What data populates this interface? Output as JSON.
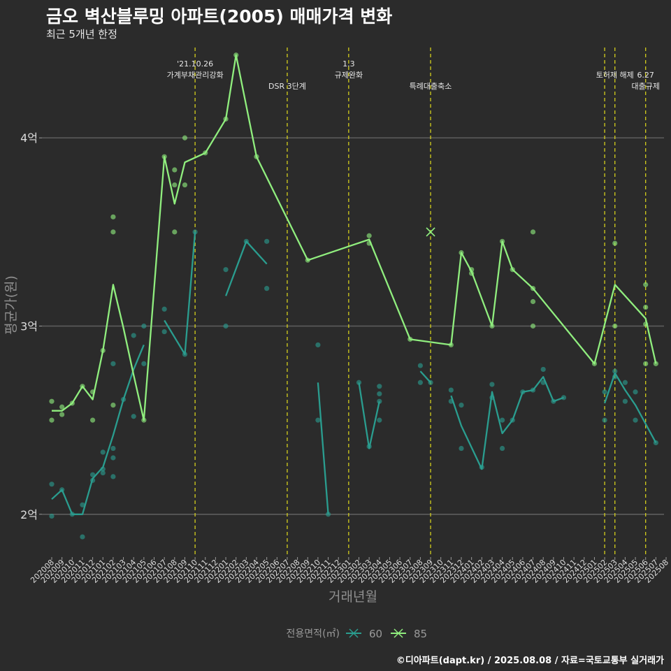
{
  "title": "금오 벽산블루밍 아파트(2005) 매매가격 변화",
  "subtitle": "최근 5개년 한정",
  "caption": "©디아파트(dapt.kr) / 2025.08.08 / 자료=국토교통부 실거래가",
  "chart_data": {
    "type": "line",
    "xlabel": "거래년월",
    "ylabel": "평균가(원)",
    "ylim": [
      1.78,
      4.48
    ],
    "yticks": [
      {
        "value": 2,
        "label": "2억"
      },
      {
        "value": 3,
        "label": "3억"
      },
      {
        "value": 4,
        "label": "4억"
      }
    ],
    "categories": [
      "202008",
      "202009",
      "202010",
      "202011",
      "202012",
      "202101",
      "202102",
      "202103",
      "202104",
      "202105",
      "202106",
      "202107",
      "202108",
      "202109",
      "202110",
      "202111",
      "202112",
      "202201",
      "202202",
      "202203",
      "202204",
      "202205",
      "202206",
      "202207",
      "202208",
      "202209",
      "202210",
      "202211",
      "202212",
      "202301",
      "202302",
      "202303",
      "202304",
      "202305",
      "202306",
      "202307",
      "202308",
      "202309",
      "202310",
      "202311",
      "202312",
      "202401",
      "202402",
      "202403",
      "202404",
      "202405",
      "202406",
      "202407",
      "202408",
      "202409",
      "202410",
      "202411",
      "202412",
      "202501",
      "202502",
      "202503",
      "202504",
      "202505",
      "202506",
      "202507",
      "202508"
    ],
    "legend": {
      "title": "전용면적(㎡)",
      "position": "bottom"
    },
    "series": [
      {
        "name": "60",
        "color": "#2a9d8f",
        "lines": [
          [
            [
              "202008",
              2.08
            ],
            [
              "202009",
              2.13
            ],
            [
              "202010",
              2.0
            ],
            [
              "202011",
              2.0
            ],
            [
              "202012",
              2.19
            ],
            [
              "202101",
              2.25
            ],
            [
              "202102",
              2.42
            ],
            [
              "202103",
              2.61
            ],
            [
              "202104",
              2.77
            ],
            [
              "202105",
              2.9
            ]
          ],
          [
            [
              "202107",
              3.03
            ],
            [
              "202109",
              2.85
            ],
            [
              "202110",
              3.5
            ]
          ],
          [
            [
              "202201",
              3.16
            ],
            [
              "202203",
              3.45
            ],
            [
              "202205",
              3.33
            ]
          ],
          [
            [
              "202210",
              2.7
            ],
            [
              "202211",
              2.0
            ]
          ],
          [
            [
              "202302",
              2.7
            ],
            [
              "202303",
              2.35
            ],
            [
              "202304",
              2.6
            ]
          ],
          [
            [
              "202308",
              2.76
            ],
            [
              "202309",
              2.7
            ]
          ],
          [
            [
              "202311",
              2.63
            ],
            [
              "202312",
              2.47
            ],
            [
              "202402",
              2.24
            ],
            [
              "202403",
              2.65
            ],
            [
              "202404",
              2.43
            ],
            [
              "202405",
              2.5
            ],
            [
              "202406",
              2.65
            ],
            [
              "202407",
              2.66
            ],
            [
              "202408",
              2.73
            ],
            [
              "202409",
              2.6
            ],
            [
              "202410",
              2.62
            ]
          ],
          [
            [
              "202502",
              2.59
            ],
            [
              "202503",
              2.75
            ],
            [
              "202504",
              2.66
            ],
            [
              "202505",
              2.58
            ],
            [
              "202507",
              2.38
            ]
          ]
        ],
        "points": [
          [
            "202008",
            2.16
          ],
          [
            "202008",
            1.99
          ],
          [
            "202009",
            2.13
          ],
          [
            "202010",
            2.0
          ],
          [
            "202011",
            2.05
          ],
          [
            "202011",
            1.88
          ],
          [
            "202012",
            2.21
          ],
          [
            "202012",
            2.18
          ],
          [
            "202101",
            2.33
          ],
          [
            "202101",
            2.24
          ],
          [
            "202101",
            2.22
          ],
          [
            "202102",
            2.8
          ],
          [
            "202102",
            2.35
          ],
          [
            "202102",
            2.3
          ],
          [
            "202102",
            2.2
          ],
          [
            "202103",
            2.61
          ],
          [
            "202104",
            2.95
          ],
          [
            "202104",
            2.52
          ],
          [
            "202105",
            3.0
          ],
          [
            "202105",
            2.8
          ],
          [
            "202107",
            3.09
          ],
          [
            "202107",
            2.97
          ],
          [
            "202109",
            2.85
          ],
          [
            "202110",
            3.5
          ],
          [
            "202201",
            3.3
          ],
          [
            "202201",
            3.0
          ],
          [
            "202203",
            3.45
          ],
          [
            "202205",
            3.45
          ],
          [
            "202205",
            3.2
          ],
          [
            "202210",
            2.9
          ],
          [
            "202210",
            2.5
          ],
          [
            "202211",
            2.0
          ],
          [
            "202302",
            2.7
          ],
          [
            "202303",
            2.36
          ],
          [
            "202304",
            2.68
          ],
          [
            "202304",
            2.64
          ],
          [
            "202304",
            2.6
          ],
          [
            "202304",
            2.5
          ],
          [
            "202308",
            2.79
          ],
          [
            "202308",
            2.7
          ],
          [
            "202309",
            2.7
          ],
          [
            "202311",
            2.66
          ],
          [
            "202311",
            2.6
          ],
          [
            "202312",
            2.58
          ],
          [
            "202312",
            2.35
          ],
          [
            "202402",
            2.25
          ],
          [
            "202403",
            2.69
          ],
          [
            "202403",
            2.62
          ],
          [
            "202404",
            2.5
          ],
          [
            "202404",
            2.35
          ],
          [
            "202405",
            2.5
          ],
          [
            "202406",
            2.65
          ],
          [
            "202407",
            2.66
          ],
          [
            "202408",
            2.77
          ],
          [
            "202408",
            2.7
          ],
          [
            "202409",
            2.6
          ],
          [
            "202410",
            2.62
          ],
          [
            "202502",
            2.65
          ],
          [
            "202502",
            2.5
          ],
          [
            "202503",
            2.76
          ],
          [
            "202503",
            2.73
          ],
          [
            "202504",
            2.7
          ],
          [
            "202504",
            2.6
          ],
          [
            "202505",
            2.65
          ],
          [
            "202505",
            2.5
          ],
          [
            "202507",
            2.38
          ]
        ]
      },
      {
        "name": "85",
        "color": "#90ee7e",
        "lines": [
          [
            [
              "202008",
              2.55
            ],
            [
              "202009",
              2.55
            ],
            [
              "202010",
              2.59
            ],
            [
              "202011",
              2.68
            ],
            [
              "202012",
              2.61
            ],
            [
              "202101",
              2.87
            ],
            [
              "202102",
              3.22
            ],
            [
              "202103",
              2.99
            ],
            [
              "202104",
              2.74
            ],
            [
              "202105",
              2.5
            ],
            [
              "202107",
              3.9
            ],
            [
              "202108",
              3.65
            ],
            [
              "202109",
              3.87
            ],
            [
              "202111",
              3.92
            ],
            [
              "202201",
              4.1
            ],
            [
              "202202",
              4.44
            ],
            [
              "202204",
              3.9
            ],
            [
              "202209",
              3.35
            ],
            [
              "202303",
              3.46
            ],
            [
              "202307",
              2.93
            ],
            [
              "202311",
              2.9
            ],
            [
              "202312",
              3.39
            ],
            [
              "202401",
              3.29
            ],
            [
              "202403",
              3.0
            ],
            [
              "202404",
              3.45
            ],
            [
              "202405",
              3.3
            ],
            [
              "202407",
              3.2
            ],
            [
              "202501",
              2.8
            ],
            [
              "202503",
              3.22
            ],
            [
              "202506",
              3.04
            ],
            [
              "202507",
              2.8
            ]
          ]
        ],
        "points": [
          [
            "202008",
            2.6
          ],
          [
            "202008",
            2.5
          ],
          [
            "202009",
            2.57
          ],
          [
            "202009",
            2.53
          ],
          [
            "202010",
            2.59
          ],
          [
            "202011",
            2.68
          ],
          [
            "202012",
            2.65
          ],
          [
            "202012",
            2.5
          ],
          [
            "202101",
            2.87
          ],
          [
            "202102",
            3.58
          ],
          [
            "202102",
            3.5
          ],
          [
            "202102",
            2.58
          ],
          [
            "202105",
            2.5
          ],
          [
            "202107",
            3.9
          ],
          [
            "202108",
            3.83
          ],
          [
            "202108",
            3.75
          ],
          [
            "202108",
            3.5
          ],
          [
            "202109",
            4.0
          ],
          [
            "202109",
            3.75
          ],
          [
            "202111",
            3.92
          ],
          [
            "202201",
            4.1
          ],
          [
            "202202",
            4.44
          ],
          [
            "202204",
            3.9
          ],
          [
            "202209",
            3.35
          ],
          [
            "202303",
            3.48
          ],
          [
            "202303",
            3.44
          ],
          [
            "202307",
            2.93
          ],
          [
            "202311",
            2.9
          ],
          [
            "202312",
            3.39
          ],
          [
            "202401",
            3.3
          ],
          [
            "202401",
            3.28
          ],
          [
            "202403",
            3.0
          ],
          [
            "202404",
            3.45
          ],
          [
            "202405",
            3.3
          ],
          [
            "202407",
            3.5
          ],
          [
            "202407",
            3.2
          ],
          [
            "202407",
            3.13
          ],
          [
            "202407",
            3.0
          ],
          [
            "202501",
            2.8
          ],
          [
            "202503",
            3.44
          ],
          [
            "202503",
            3.0
          ],
          [
            "202506",
            3.22
          ],
          [
            "202506",
            3.1
          ],
          [
            "202506",
            3.01
          ],
          [
            "202506",
            2.8
          ],
          [
            "202507",
            2.8
          ]
        ],
        "special_points": [
          [
            "202309",
            3.5
          ]
        ]
      }
    ],
    "events": [
      {
        "x": "202110",
        "label": "'21.10.26\n가계부채관리강화",
        "row": 0
      },
      {
        "x": "202207",
        "label": "DSR 3단계",
        "row": 1
      },
      {
        "x": "202301",
        "label": "1.3\n규제완화",
        "row": 0
      },
      {
        "x": "202309",
        "label": "특례대출축소",
        "row": 1
      },
      {
        "x": "202502",
        "label": "",
        "row": 0
      },
      {
        "x": "202503",
        "label": "토허제 해제",
        "row": 0
      },
      {
        "x": "202506",
        "label": "6.27\n대출규제",
        "row": 1
      }
    ]
  }
}
